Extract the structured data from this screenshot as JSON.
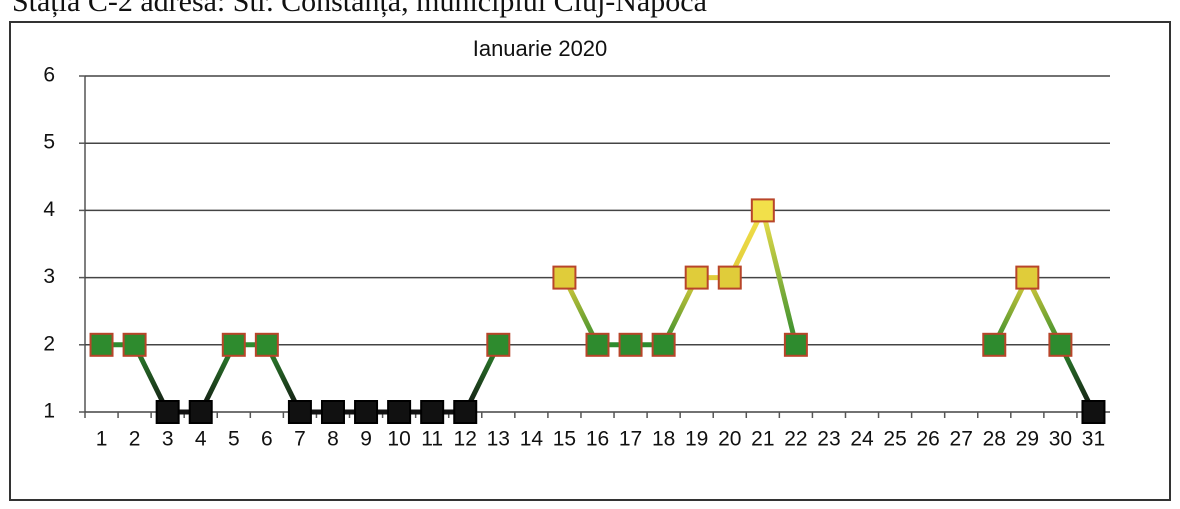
{
  "header": "Stația C-2 adresa: Str. Constanța, municipiul Cluj-Napoca",
  "chart_data": {
    "type": "line",
    "title": "Ianuarie 2020",
    "categories": [
      "1",
      "2",
      "3",
      "4",
      "5",
      "6",
      "7",
      "8",
      "9",
      "10",
      "11",
      "12",
      "13",
      "14",
      "15",
      "16",
      "17",
      "18",
      "19",
      "20",
      "21",
      "22",
      "23",
      "24",
      "25",
      "26",
      "27",
      "28",
      "29",
      "30",
      "31"
    ],
    "values": [
      2,
      2,
      1,
      1,
      2,
      2,
      1,
      1,
      1,
      1,
      1,
      1,
      2,
      null,
      3,
      2,
      2,
      2,
      3,
      3,
      4,
      2,
      null,
      null,
      null,
      null,
      null,
      2,
      3,
      2,
      1
    ],
    "ylim": [
      1,
      6
    ],
    "yticks": [
      1,
      2,
      3,
      4,
      5,
      6
    ],
    "grid": true,
    "color_scale": [
      {
        "value": 1,
        "color": "#111111"
      },
      {
        "value": 2,
        "color": "#2e8b2e"
      },
      {
        "value": 3,
        "color": "#e0cc3a"
      },
      {
        "value": 4,
        "color": "#f2e04a"
      }
    ]
  }
}
